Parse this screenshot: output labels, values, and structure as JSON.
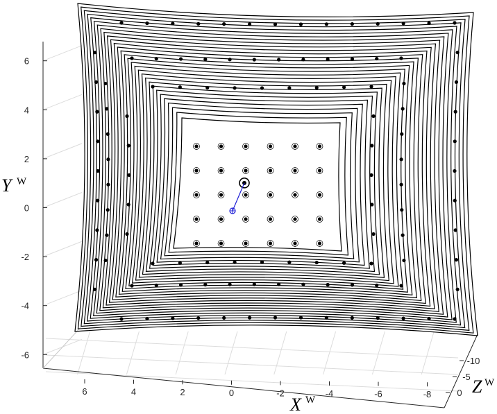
{
  "chart_data": {
    "type": "scatter",
    "title": "",
    "view": "3d",
    "x_label": "X",
    "x_label_superscript": "W",
    "y_label": "Y",
    "y_label_superscript": "W",
    "z_label": "Z",
    "z_label_superscript": "W",
    "x_ticks": [
      "6",
      "4",
      "2",
      "0",
      "-2",
      "-4",
      "-6",
      "-8"
    ],
    "y_ticks": [
      "6",
      "4",
      "2",
      "0",
      "-2",
      "-4",
      "-6"
    ],
    "z_ticks": [
      "-10",
      "-5",
      "0"
    ],
    "x_range": [
      -8.5,
      7
    ],
    "y_range": [
      -6.5,
      7
    ],
    "z_range": [
      -12,
      0
    ],
    "grid": true,
    "frame_color": "#000000",
    "point_color": "#000000",
    "camera_color": "#1f1fd6",
    "grid_color": "#dcdcdc",
    "camera_center": {
      "x": 0.1,
      "y": -0.1
    },
    "target_center": {
      "x": -0.5,
      "y": 0.5
    },
    "calibration_grid": {
      "columns": 6,
      "rows": 5,
      "dot_spacing": 1.0
    },
    "frame_count": 10
  }
}
